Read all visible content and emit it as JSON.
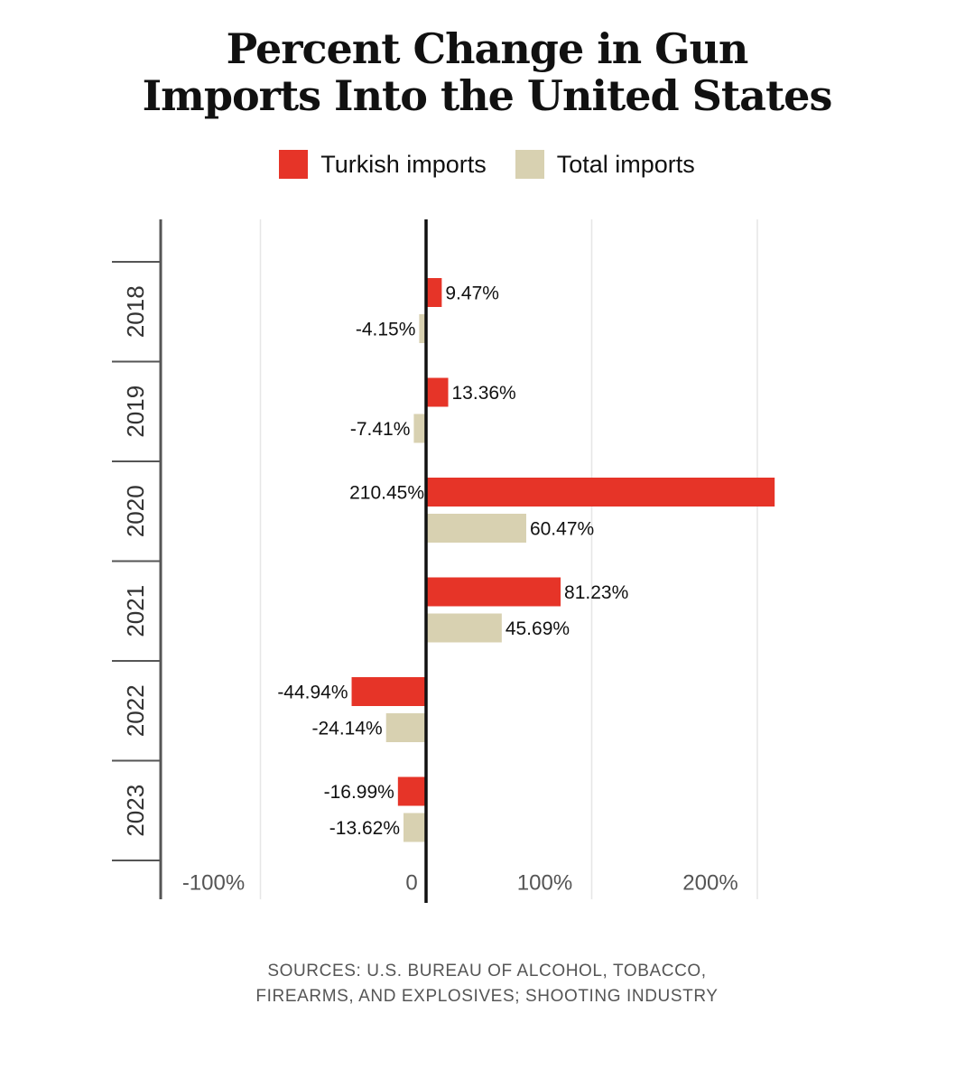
{
  "chart_data": {
    "type": "bar",
    "orientation": "horizontal",
    "title_line1": "Percent Change in Gun",
    "title_line2": "Imports Into the United States",
    "categories": [
      "2018",
      "2019",
      "2020",
      "2021",
      "2022",
      "2023"
    ],
    "series": [
      {
        "name": "Turkish imports",
        "color": "#e63428",
        "values": [
          9.47,
          13.36,
          210.45,
          81.23,
          -44.94,
          -16.99
        ],
        "labels": [
          "9.47%",
          "13.36%",
          "210.45%",
          "81.23%",
          "-44.94%",
          "-16.99%"
        ]
      },
      {
        "name": "Total imports",
        "color": "#d8d1b1",
        "values": [
          -4.15,
          -7.41,
          60.47,
          45.69,
          -24.14,
          -13.62
        ],
        "labels": [
          "-4.15%",
          "-7.41%",
          "60.47%",
          "45.69%",
          "-24.14%",
          "-13.62%"
        ]
      }
    ],
    "xlim": [
      -160,
      210
    ],
    "xticks": [
      -100,
      0,
      100,
      200
    ],
    "xtick_labels": [
      "-100%",
      "0",
      "100%",
      "200%"
    ],
    "grid": true,
    "legend_position": "top"
  },
  "source_line1": "SOURCES: U.S. BUREAU OF ALCOHOL, TOBACCO,",
  "source_line2": "FIREARMS, AND EXPLOSIVES; SHOOTING INDUSTRY"
}
